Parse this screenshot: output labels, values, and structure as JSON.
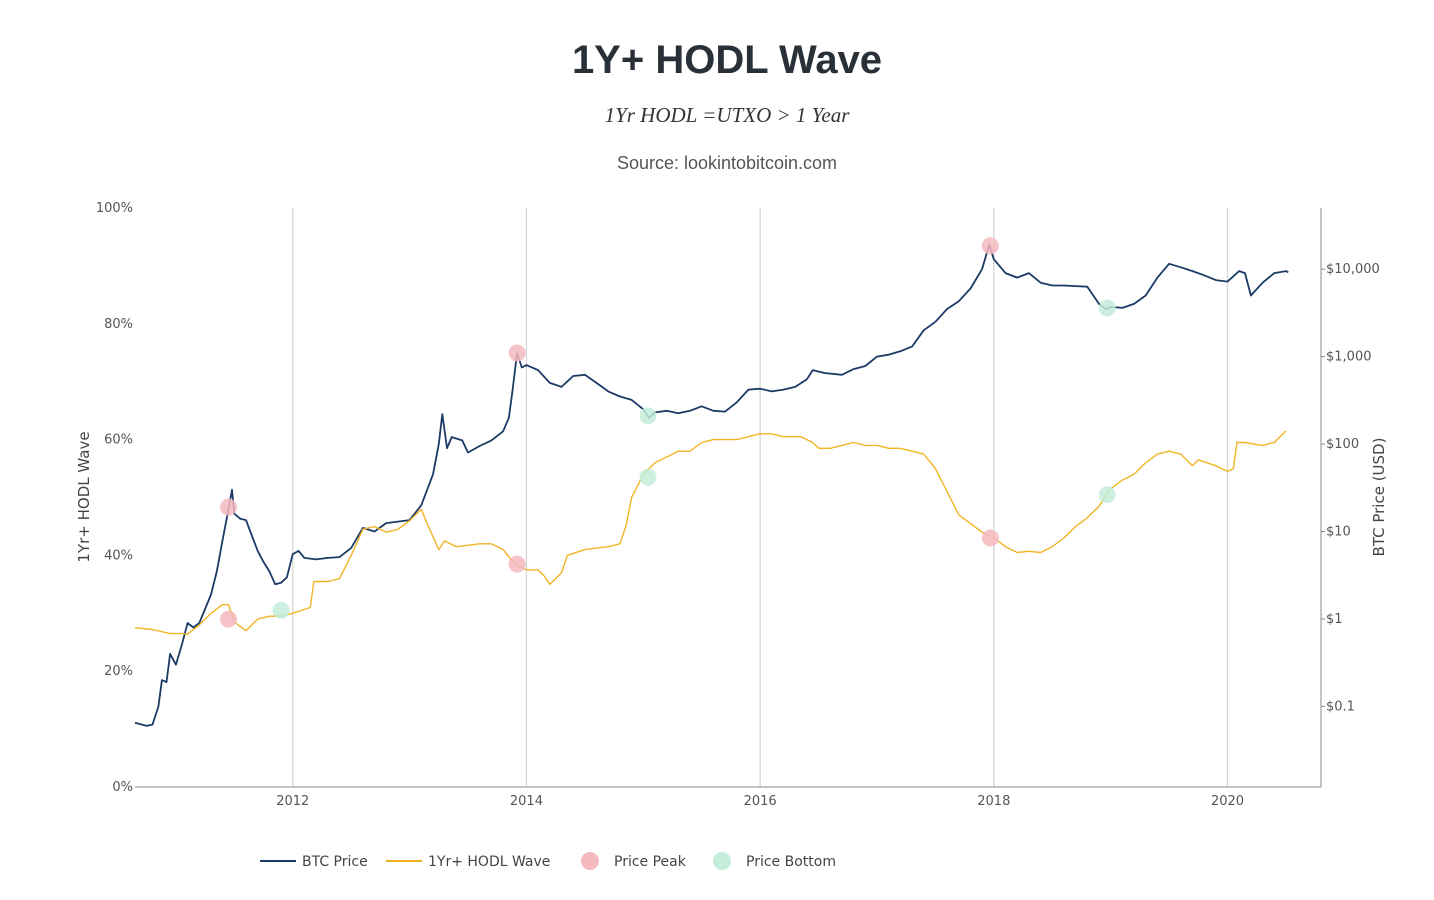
{
  "chart_data": {
    "type": "line",
    "title": "1Y+ HODL Wave",
    "subtitle": "1Yr HODL =UTXO > 1 Year",
    "source": "Source: lookintobitcoin.com",
    "y_left_label": "1Yr+ HODL Wave",
    "y_right_label": "BTC Price (USD)",
    "y_left_ticks": [
      "0%",
      "20%",
      "40%",
      "60%",
      "80%",
      "100%"
    ],
    "y_left_range": [
      0,
      100
    ],
    "y_right_scale": "log",
    "y_right_ticks": [
      "$0.1",
      "$1",
      "$10",
      "$100",
      "$1,000",
      "$10,000"
    ],
    "y_right_range": [
      0.012,
      50000
    ],
    "x_ticks": [
      "2012",
      "2014",
      "2016",
      "2018",
      "2020"
    ],
    "x_range": [
      2010.65,
      2020.8
    ],
    "grid": "vertical at x ticks",
    "legend_placement": "bottom",
    "colors": {
      "btc": "#1c3a66",
      "hodl": "#f2b426",
      "peak": "#f5b9bf",
      "bottom": "#c3ecd9",
      "grid": "#d6d6d6",
      "axis": "#888888"
    },
    "series": [
      {
        "name": "BTC Price",
        "axis": "right",
        "points": [
          [
            2010.65,
            0.065
          ],
          [
            2010.75,
            0.06
          ],
          [
            2010.8,
            0.062
          ],
          [
            2010.85,
            0.1
          ],
          [
            2010.88,
            0.2
          ],
          [
            2010.92,
            0.19
          ],
          [
            2010.95,
            0.4
          ],
          [
            2011.0,
            0.3
          ],
          [
            2011.05,
            0.5
          ],
          [
            2011.1,
            0.9
          ],
          [
            2011.15,
            0.8
          ],
          [
            2011.2,
            0.9
          ],
          [
            2011.3,
            1.9
          ],
          [
            2011.35,
            3.5
          ],
          [
            2011.4,
            8.0
          ],
          [
            2011.45,
            18.0
          ],
          [
            2011.48,
            30.0
          ],
          [
            2011.5,
            16.0
          ],
          [
            2011.55,
            14.0
          ],
          [
            2011.6,
            13.5
          ],
          [
            2011.65,
            9.0
          ],
          [
            2011.7,
            6.0
          ],
          [
            2011.75,
            4.5
          ],
          [
            2011.8,
            3.5
          ],
          [
            2011.85,
            2.5
          ],
          [
            2011.9,
            2.6
          ],
          [
            2011.95,
            3.0
          ],
          [
            2012.0,
            5.5
          ],
          [
            2012.05,
            6.0
          ],
          [
            2012.1,
            5.0
          ],
          [
            2012.2,
            4.8
          ],
          [
            2012.3,
            5.0
          ],
          [
            2012.4,
            5.1
          ],
          [
            2012.5,
            6.5
          ],
          [
            2012.6,
            11.0
          ],
          [
            2012.7,
            10.0
          ],
          [
            2012.8,
            12.5
          ],
          [
            2012.9,
            13.0
          ],
          [
            2013.0,
            13.5
          ],
          [
            2013.1,
            20.0
          ],
          [
            2013.2,
            45.0
          ],
          [
            2013.25,
            100.0
          ],
          [
            2013.28,
            220.0
          ],
          [
            2013.32,
            90.0
          ],
          [
            2013.36,
            120.0
          ],
          [
            2013.45,
            110.0
          ],
          [
            2013.5,
            80.0
          ],
          [
            2013.6,
            95.0
          ],
          [
            2013.7,
            110.0
          ],
          [
            2013.8,
            140.0
          ],
          [
            2013.85,
            200.0
          ],
          [
            2013.88,
            400.0
          ],
          [
            2013.92,
            1100.0
          ],
          [
            2013.96,
            750.0
          ],
          [
            2014.0,
            800.0
          ],
          [
            2014.1,
            700.0
          ],
          [
            2014.2,
            500.0
          ],
          [
            2014.3,
            450.0
          ],
          [
            2014.4,
            600.0
          ],
          [
            2014.5,
            620.0
          ],
          [
            2014.6,
            500.0
          ],
          [
            2014.7,
            400.0
          ],
          [
            2014.8,
            350.0
          ],
          [
            2014.9,
            320.0
          ],
          [
            2015.0,
            250.0
          ],
          [
            2015.05,
            200.0
          ],
          [
            2015.1,
            230.0
          ],
          [
            2015.2,
            240.0
          ],
          [
            2015.3,
            225.0
          ],
          [
            2015.4,
            240.0
          ],
          [
            2015.5,
            270.0
          ],
          [
            2015.6,
            240.0
          ],
          [
            2015.7,
            235.0
          ],
          [
            2015.8,
            300.0
          ],
          [
            2015.9,
            420.0
          ],
          [
            2016.0,
            430.0
          ],
          [
            2016.1,
            400.0
          ],
          [
            2016.2,
            420.0
          ],
          [
            2016.3,
            450.0
          ],
          [
            2016.4,
            550.0
          ],
          [
            2016.45,
            700.0
          ],
          [
            2016.55,
            650.0
          ],
          [
            2016.7,
            620.0
          ],
          [
            2016.8,
            720.0
          ],
          [
            2016.9,
            780.0
          ],
          [
            2017.0,
            1000.0
          ],
          [
            2017.1,
            1050.0
          ],
          [
            2017.2,
            1150.0
          ],
          [
            2017.3,
            1300.0
          ],
          [
            2017.4,
            2000.0
          ],
          [
            2017.5,
            2500.0
          ],
          [
            2017.6,
            3500.0
          ],
          [
            2017.7,
            4300.0
          ],
          [
            2017.8,
            6000.0
          ],
          [
            2017.9,
            10000.0
          ],
          [
            2017.96,
            19000.0
          ],
          [
            2018.0,
            13000.0
          ],
          [
            2018.1,
            9000.0
          ],
          [
            2018.2,
            8000.0
          ],
          [
            2018.3,
            9000.0
          ],
          [
            2018.4,
            7000.0
          ],
          [
            2018.5,
            6500.0
          ],
          [
            2018.6,
            6500.0
          ],
          [
            2018.7,
            6400.0
          ],
          [
            2018.8,
            6300.0
          ],
          [
            2018.9,
            4000.0
          ],
          [
            2018.96,
            3500.0
          ],
          [
            2019.0,
            3700.0
          ],
          [
            2019.1,
            3600.0
          ],
          [
            2019.2,
            4000.0
          ],
          [
            2019.3,
            5000.0
          ],
          [
            2019.4,
            8000.0
          ],
          [
            2019.5,
            11500.0
          ],
          [
            2019.6,
            10500.0
          ],
          [
            2019.7,
            9500.0
          ],
          [
            2019.8,
            8500.0
          ],
          [
            2019.9,
            7500.0
          ],
          [
            2020.0,
            7200.0
          ],
          [
            2020.1,
            9500.0
          ],
          [
            2020.15,
            9000.0
          ],
          [
            2020.2,
            5000.0
          ],
          [
            2020.3,
            7000.0
          ],
          [
            2020.4,
            9000.0
          ],
          [
            2020.5,
            9500.0
          ],
          [
            2020.52,
            9200.0
          ]
        ]
      },
      {
        "name": "1Yr+ HODL Wave",
        "axis": "left",
        "points": [
          [
            2010.65,
            27.5
          ],
          [
            2010.8,
            27.2
          ],
          [
            2010.95,
            26.5
          ],
          [
            2011.05,
            26.5
          ],
          [
            2011.1,
            26.4
          ],
          [
            2011.2,
            28.0
          ],
          [
            2011.3,
            30.0
          ],
          [
            2011.4,
            31.5
          ],
          [
            2011.45,
            31.5
          ],
          [
            2011.5,
            28.5
          ],
          [
            2011.6,
            27.0
          ],
          [
            2011.7,
            29.0
          ],
          [
            2011.8,
            29.5
          ],
          [
            2011.9,
            29.5
          ],
          [
            2012.0,
            30.0
          ],
          [
            2012.15,
            31.0
          ],
          [
            2012.18,
            35.5
          ],
          [
            2012.3,
            35.5
          ],
          [
            2012.4,
            36.0
          ],
          [
            2012.5,
            40.0
          ],
          [
            2012.6,
            44.5
          ],
          [
            2012.7,
            45.0
          ],
          [
            2012.8,
            44.0
          ],
          [
            2012.9,
            44.5
          ],
          [
            2013.0,
            46.0
          ],
          [
            2013.1,
            48.0
          ],
          [
            2013.15,
            45.5
          ],
          [
            2013.25,
            41.0
          ],
          [
            2013.3,
            42.5
          ],
          [
            2013.4,
            41.5
          ],
          [
            2013.6,
            42.0
          ],
          [
            2013.7,
            42.0
          ],
          [
            2013.8,
            41.0
          ],
          [
            2013.9,
            38.5
          ],
          [
            2014.0,
            37.5
          ],
          [
            2014.1,
            37.5
          ],
          [
            2014.15,
            36.5
          ],
          [
            2014.2,
            35.0
          ],
          [
            2014.3,
            37.0
          ],
          [
            2014.35,
            40.0
          ],
          [
            2014.5,
            41.0
          ],
          [
            2014.7,
            41.5
          ],
          [
            2014.8,
            42.0
          ],
          [
            2014.85,
            45.0
          ],
          [
            2014.9,
            50.0
          ],
          [
            2015.0,
            54.0
          ],
          [
            2015.1,
            56.0
          ],
          [
            2015.2,
            57.0
          ],
          [
            2015.3,
            58.0
          ],
          [
            2015.4,
            58.0
          ],
          [
            2015.5,
            59.5
          ],
          [
            2015.6,
            60.0
          ],
          [
            2015.8,
            60.0
          ],
          [
            2015.9,
            60.5
          ],
          [
            2016.0,
            61.0
          ],
          [
            2016.1,
            61.0
          ],
          [
            2016.2,
            60.5
          ],
          [
            2016.35,
            60.5
          ],
          [
            2016.45,
            59.5
          ],
          [
            2016.5,
            58.5
          ],
          [
            2016.6,
            58.5
          ],
          [
            2016.7,
            59.0
          ],
          [
            2016.8,
            59.5
          ],
          [
            2016.9,
            59.0
          ],
          [
            2017.0,
            59.0
          ],
          [
            2017.1,
            58.5
          ],
          [
            2017.2,
            58.5
          ],
          [
            2017.3,
            58.0
          ],
          [
            2017.4,
            57.5
          ],
          [
            2017.5,
            55.0
          ],
          [
            2017.6,
            51.0
          ],
          [
            2017.7,
            47.0
          ],
          [
            2017.8,
            45.5
          ],
          [
            2017.9,
            44.0
          ],
          [
            2018.0,
            43.0
          ],
          [
            2018.1,
            41.5
          ],
          [
            2018.2,
            40.5
          ],
          [
            2018.3,
            40.7
          ],
          [
            2018.4,
            40.5
          ],
          [
            2018.5,
            41.5
          ],
          [
            2018.6,
            43.0
          ],
          [
            2018.7,
            45.0
          ],
          [
            2018.8,
            46.5
          ],
          [
            2018.9,
            48.5
          ],
          [
            2018.95,
            50.0
          ],
          [
            2019.0,
            51.5
          ],
          [
            2019.1,
            53.0
          ],
          [
            2019.2,
            54.0
          ],
          [
            2019.3,
            56.0
          ],
          [
            2019.4,
            57.5
          ],
          [
            2019.5,
            58.0
          ],
          [
            2019.6,
            57.5
          ],
          [
            2019.7,
            55.5
          ],
          [
            2019.75,
            56.5
          ],
          [
            2019.9,
            55.5
          ],
          [
            2020.0,
            54.5
          ],
          [
            2020.05,
            55.0
          ],
          [
            2020.08,
            59.5
          ],
          [
            2020.15,
            59.5
          ],
          [
            2020.3,
            59.0
          ],
          [
            2020.4,
            59.5
          ],
          [
            2020.5,
            61.5
          ]
        ]
      },
      {
        "name": "Price Peak",
        "type": "markers",
        "markers": [
          {
            "x": 2011.45,
            "axis": "right",
            "y": 19.0
          },
          {
            "x": 2011.45,
            "axis": "left",
            "y": 29.0
          },
          {
            "x": 2013.92,
            "axis": "right",
            "y": 1100.0
          },
          {
            "x": 2013.92,
            "axis": "left",
            "y": 38.5
          },
          {
            "x": 2017.97,
            "axis": "right",
            "y": 18500.0
          },
          {
            "x": 2017.97,
            "axis": "left",
            "y": 43.0
          }
        ]
      },
      {
        "name": "Price Bottom",
        "type": "markers",
        "markers": [
          {
            "x": 2011.9,
            "axis": "left",
            "y": 30.5
          },
          {
            "x": 2015.04,
            "axis": "right",
            "y": 210.0
          },
          {
            "x": 2015.04,
            "axis": "left",
            "y": 53.5
          },
          {
            "x": 2018.97,
            "axis": "right",
            "y": 3600.0
          },
          {
            "x": 2018.97,
            "axis": "left",
            "y": 50.5
          }
        ]
      }
    ],
    "legend": [
      "BTC Price",
      "1Yr+ HODL Wave",
      "Price Peak",
      "Price Bottom"
    ]
  }
}
